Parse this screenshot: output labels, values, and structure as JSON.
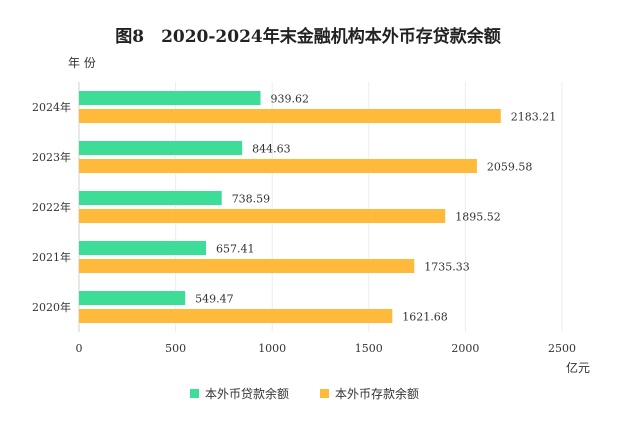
{
  "chart_data": {
    "type": "bar",
    "orientation": "horizontal",
    "title": "图8　2020-2024年末金融机构本外币存贷款余额",
    "ylabel": "年 份",
    "xlabel": "亿元",
    "categories": [
      "2024年",
      "2023年",
      "2022年",
      "2021年",
      "2020年"
    ],
    "xlim": [
      0,
      2500
    ],
    "xticks": [
      0,
      500,
      1000,
      1500,
      2000,
      2500
    ],
    "grid": true,
    "legend_position": "bottom",
    "series": [
      {
        "name": "本外币贷款余额",
        "color": "#3DDC97",
        "values": [
          939.62,
          844.63,
          738.59,
          657.41,
          549.47
        ]
      },
      {
        "name": "本外币存款余额",
        "color": "#FFBA3B",
        "values": [
          2183.21,
          2059.58,
          1895.52,
          1735.33,
          1621.68
        ]
      }
    ]
  }
}
